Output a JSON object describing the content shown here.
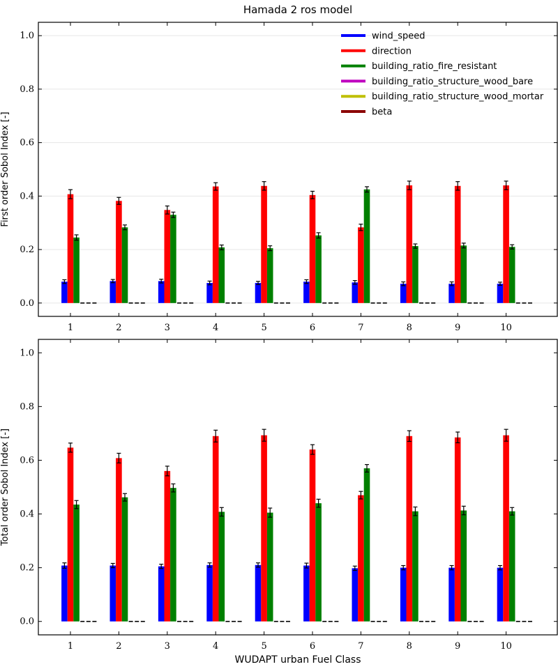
{
  "chart_data": {
    "type": "bar",
    "title": "Hamada 2 ros model",
    "xlabel": "WUDAPT urban Fuel Class",
    "categories": [
      "1",
      "2",
      "3",
      "4",
      "5",
      "6",
      "7",
      "8",
      "9",
      "10"
    ],
    "legend": {
      "placement": "top-right",
      "entries": [
        {
          "name": "wind_speed",
          "color": "#0000ff"
        },
        {
          "name": "direction",
          "color": "#ff0000"
        },
        {
          "name": "building_ratio_fire_resistant",
          "color": "#008000"
        },
        {
          "name": "building_ratio_structure_wood_bare",
          "color": "#bf00bf"
        },
        {
          "name": "building_ratio_structure_wood_mortar",
          "color": "#bfbf00"
        },
        {
          "name": "beta",
          "color": "#8b0000"
        }
      ]
    },
    "panels": [
      {
        "ylabel": "First order Sobol Index [-]",
        "ylim": [
          -0.05,
          1.05
        ],
        "yticks": [
          "0.0",
          "0.2",
          "0.4",
          "0.6",
          "0.8",
          "1.0"
        ],
        "grid": true,
        "series": [
          {
            "name": "wind_speed",
            "values": [
              0.08,
              0.082,
              0.082,
              0.075,
              0.075,
              0.08,
              0.077,
              0.072,
              0.072,
              0.072
            ],
            "errors": [
              0.007,
              0.006,
              0.007,
              0.007,
              0.006,
              0.007,
              0.007,
              0.007,
              0.007,
              0.006
            ]
          },
          {
            "name": "direction",
            "values": [
              0.407,
              0.382,
              0.348,
              0.436,
              0.438,
              0.404,
              0.283,
              0.44,
              0.438,
              0.44
            ],
            "errors": [
              0.017,
              0.013,
              0.015,
              0.014,
              0.016,
              0.014,
              0.012,
              0.016,
              0.016,
              0.016
            ]
          },
          {
            "name": "building_ratio_fire_resistant",
            "values": [
              0.245,
              0.283,
              0.33,
              0.208,
              0.205,
              0.253,
              0.425,
              0.213,
              0.215,
              0.21
            ],
            "errors": [
              0.01,
              0.009,
              0.01,
              0.009,
              0.009,
              0.01,
              0.01,
              0.008,
              0.009,
              0.008
            ]
          },
          {
            "name": "building_ratio_structure_wood_bare",
            "values": [
              0,
              0,
              0,
              0,
              0,
              0,
              0,
              0,
              0,
              0
            ]
          },
          {
            "name": "building_ratio_structure_wood_mortar",
            "values": [
              0,
              0,
              0,
              0,
              0,
              0,
              0,
              0,
              0,
              0
            ]
          },
          {
            "name": "beta",
            "values": [
              0,
              0,
              0,
              0,
              0,
              0,
              0,
              0,
              0,
              0
            ]
          }
        ]
      },
      {
        "ylabel": "Total order Sobol Index [-]",
        "ylim": [
          -0.05,
          1.05
        ],
        "yticks": [
          "0.0",
          "0.2",
          "0.4",
          "0.6",
          "0.8",
          "1.0"
        ],
        "grid": false,
        "series": [
          {
            "name": "wind_speed",
            "values": [
              0.208,
              0.208,
              0.205,
              0.21,
              0.21,
              0.208,
              0.198,
              0.2,
              0.2,
              0.2
            ],
            "errors": [
              0.01,
              0.008,
              0.008,
              0.008,
              0.008,
              0.009,
              0.008,
              0.008,
              0.008,
              0.008
            ]
          },
          {
            "name": "direction",
            "values": [
              0.647,
              0.608,
              0.56,
              0.69,
              0.693,
              0.64,
              0.47,
              0.69,
              0.685,
              0.693
            ],
            "errors": [
              0.017,
              0.018,
              0.018,
              0.022,
              0.022,
              0.018,
              0.014,
              0.02,
              0.02,
              0.022
            ]
          },
          {
            "name": "building_ratio_fire_resistant",
            "values": [
              0.435,
              0.462,
              0.497,
              0.408,
              0.405,
              0.44,
              0.57,
              0.41,
              0.413,
              0.41
            ],
            "errors": [
              0.015,
              0.014,
              0.015,
              0.016,
              0.017,
              0.015,
              0.014,
              0.016,
              0.016,
              0.014
            ]
          },
          {
            "name": "building_ratio_structure_wood_bare",
            "values": [
              0,
              0,
              0,
              0,
              0,
              0,
              0,
              0,
              0,
              0
            ]
          },
          {
            "name": "building_ratio_structure_wood_mortar",
            "values": [
              0,
              0,
              0,
              0,
              0,
              0,
              0,
              0,
              0,
              0
            ]
          },
          {
            "name": "beta",
            "values": [
              0,
              0,
              0,
              0,
              0,
              0,
              0,
              0,
              0,
              0
            ]
          }
        ]
      }
    ]
  }
}
